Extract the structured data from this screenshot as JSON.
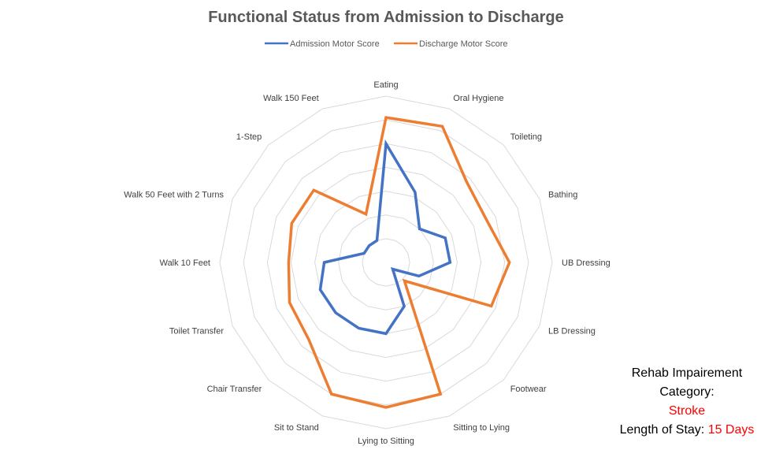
{
  "colors": {
    "admission": "#4472C4",
    "discharge": "#ED7D31",
    "grid": "#D9D9D9",
    "highlight": "#FF0000"
  },
  "chart_data": {
    "type": "radar",
    "title": "Functional Status from Admission to Discharge",
    "legend_position": "top",
    "grid": true,
    "rmax": 7,
    "rings": 7,
    "categories": [
      "Eating",
      "Oral Hygiene",
      "Toileting",
      "Bathing",
      "UB Dressing",
      "LB Dressing",
      "Footwear",
      "Sitting to Lying",
      "Lying to Sitting",
      "Sit to Stand",
      "Chair Transfer",
      "Toilet Transfer",
      "Walk 10 Feet",
      "Walk 50 Feet with 2 Turns",
      "1-Step",
      "Walk 150 Feet"
    ],
    "series": [
      {
        "name": "Admission Motor Score",
        "color": "#4472C4",
        "values": [
          5.0,
          3.2,
          2.0,
          2.7,
          2.7,
          1.5,
          0.4,
          2.0,
          3.0,
          3.0,
          3.0,
          3.0,
          2.6,
          1.0,
          1.0,
          1.0
        ]
      },
      {
        "name": "Discharge Motor Score",
        "color": "#ED7D31",
        "values": [
          6.1,
          6.2,
          4.8,
          4.6,
          5.2,
          4.8,
          1.1,
          6.0,
          6.1,
          6.0,
          4.6,
          4.4,
          4.1,
          4.3,
          4.3,
          2.2
        ]
      }
    ]
  },
  "info": {
    "line1": "Rehab Impairement",
    "line2": "Category:",
    "category": "Stroke",
    "los_label": "Length of Stay:",
    "los_value": "15 Days"
  }
}
